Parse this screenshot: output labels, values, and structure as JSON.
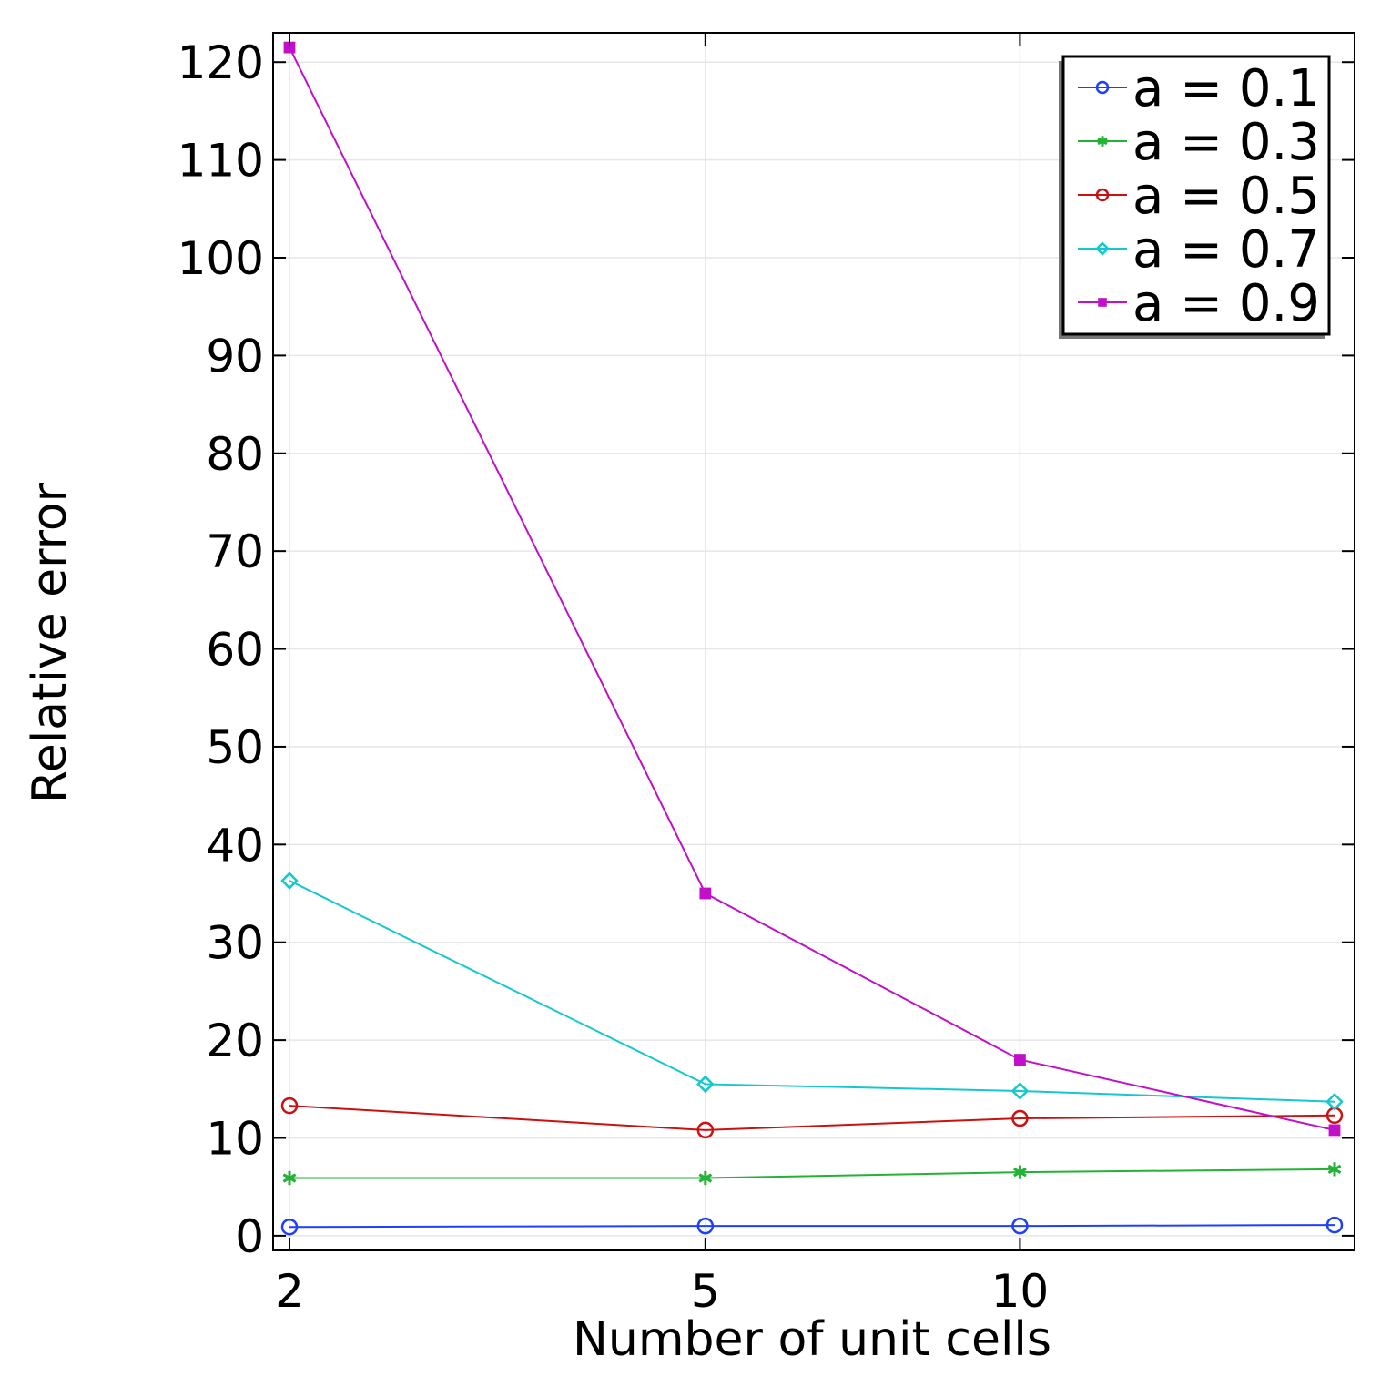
{
  "chart_data": {
    "type": "line",
    "title": "",
    "xlabel": "Number of unit cells",
    "ylabel": "Relative error",
    "xscale": "log",
    "x": [
      2,
      5,
      10,
      20
    ],
    "xticks": [
      {
        "value": 2,
        "label": "2"
      },
      {
        "value": 5,
        "label": "5"
      },
      {
        "value": 10,
        "label": "10"
      }
    ],
    "ylim": [
      -1.5,
      123
    ],
    "yticks": [
      0,
      10,
      20,
      30,
      40,
      50,
      60,
      70,
      80,
      90,
      100,
      110,
      120
    ],
    "grid": true,
    "legend_position": "top-right",
    "series": [
      {
        "name": "a = 0.1",
        "color": "#1f3fff",
        "marker": "circle",
        "values": [
          0.9,
          1.0,
          1.0,
          1.1
        ]
      },
      {
        "name": "a = 0.3",
        "color": "#22b236",
        "marker": "asterisk",
        "values": [
          5.9,
          5.9,
          6.5,
          6.8
        ]
      },
      {
        "name": "a = 0.5",
        "color": "#cc1010",
        "marker": "circle",
        "values": [
          13.3,
          10.8,
          12.0,
          12.3
        ]
      },
      {
        "name": "a = 0.7",
        "color": "#14c8cc",
        "marker": "diamond",
        "values": [
          36.3,
          15.5,
          14.8,
          13.7
        ]
      },
      {
        "name": "a = 0.9",
        "color": "#c010c8",
        "marker": "square",
        "values": [
          121.5,
          35.0,
          18.0,
          10.8
        ]
      }
    ]
  }
}
